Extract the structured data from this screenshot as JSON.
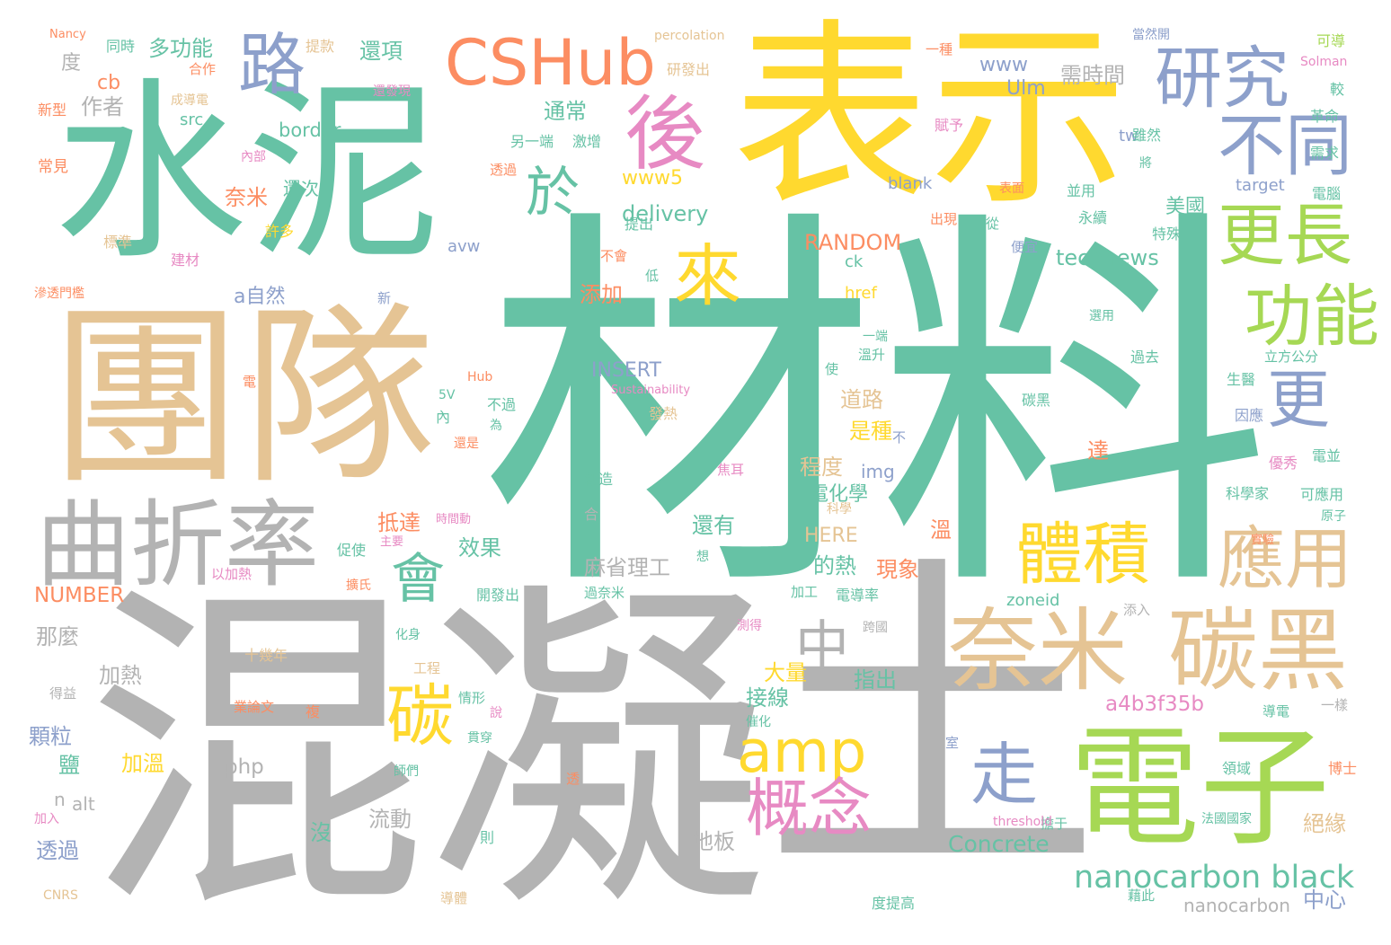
{
  "palette": {
    "teal": "#66c2a5",
    "orange": "#fc8d62",
    "blue": "#8da0cb",
    "pink": "#e78ac3",
    "lime": "#a6d854",
    "yellow": "#ffd92f",
    "tan": "#e5c494",
    "gray": "#b3b3b3"
  },
  "words": [
    {
      "text": "材料",
      "color": "teal"
    },
    {
      "text": "混凝",
      "color": "gray"
    },
    {
      "text": "表示",
      "color": "yellow"
    },
    {
      "text": "水泥",
      "color": "teal"
    },
    {
      "text": "團隊",
      "color": "tan"
    },
    {
      "text": "土",
      "color": "gray"
    },
    {
      "text": "電子",
      "color": "lime"
    },
    {
      "text": "曲折率",
      "color": "gray"
    },
    {
      "text": "CSHub",
      "color": "orange"
    },
    {
      "text": "研究",
      "color": "blue"
    },
    {
      "text": "不同",
      "color": "blue"
    },
    {
      "text": "奈米",
      "color": "tan"
    },
    {
      "text": "碳黑",
      "color": "tan"
    },
    {
      "text": "更長",
      "color": "lime"
    },
    {
      "text": "功能",
      "color": "lime"
    },
    {
      "text": "應用",
      "color": "tan"
    },
    {
      "text": "體積",
      "color": "yellow"
    },
    {
      "text": "後",
      "color": "pink"
    },
    {
      "text": "路",
      "color": "blue"
    },
    {
      "text": "來",
      "color": "yellow"
    },
    {
      "text": "於",
      "color": "teal"
    },
    {
      "text": "更",
      "color": "blue"
    },
    {
      "text": "amp",
      "color": "yellow"
    },
    {
      "text": "會",
      "color": "teal"
    },
    {
      "text": "碳",
      "color": "yellow"
    },
    {
      "text": "中",
      "color": "gray"
    },
    {
      "text": "概念",
      "color": "pink"
    },
    {
      "text": "走",
      "color": "blue"
    },
    {
      "text": "nanocarbon black",
      "color": "teal"
    },
    {
      "text": "Concrete",
      "color": "teal"
    },
    {
      "text": "a4b3f35b",
      "color": "pink"
    },
    {
      "text": "technews",
      "color": "teal"
    },
    {
      "text": "RANDOM",
      "color": "orange"
    },
    {
      "text": "delivery",
      "color": "teal"
    },
    {
      "text": "www5",
      "color": "yellow"
    },
    {
      "text": "INSERT",
      "color": "blue"
    },
    {
      "text": "多功能",
      "color": "teal"
    },
    {
      "text": "麻省理工",
      "color": "gray"
    },
    {
      "text": "NUMBER",
      "color": "orange"
    },
    {
      "text": "還項",
      "color": "teal"
    },
    {
      "text": "www",
      "color": "blue"
    },
    {
      "text": "Ulm",
      "color": "blue"
    },
    {
      "text": "需時間",
      "color": "gray"
    },
    {
      "text": "作者",
      "color": "gray"
    },
    {
      "text": "cb",
      "color": "orange"
    },
    {
      "text": "度",
      "color": "gray"
    },
    {
      "text": "通常",
      "color": "teal"
    },
    {
      "text": "border",
      "color": "teal"
    },
    {
      "text": "src",
      "color": "teal"
    },
    {
      "text": "奈米",
      "color": "orange"
    },
    {
      "text": "還次",
      "color": "teal"
    },
    {
      "text": "美國",
      "color": "teal"
    },
    {
      "text": "tw",
      "color": "blue"
    },
    {
      "text": "添加",
      "color": "orange"
    },
    {
      "text": "道路",
      "color": "tan"
    },
    {
      "text": "是種",
      "color": "yellow"
    },
    {
      "text": "程度",
      "color": "tan"
    },
    {
      "text": "電化學",
      "color": "teal"
    },
    {
      "text": "抵達",
      "color": "orange"
    },
    {
      "text": "還有",
      "color": "teal"
    },
    {
      "text": "效果",
      "color": "teal"
    },
    {
      "text": "的熱",
      "color": "teal"
    },
    {
      "text": "現象",
      "color": "orange"
    },
    {
      "text": "HERE",
      "color": "tan"
    },
    {
      "text": "a自然",
      "color": "blue"
    },
    {
      "text": "那麼",
      "color": "gray"
    },
    {
      "text": "加熱",
      "color": "gray"
    },
    {
      "text": "大量",
      "color": "yellow"
    },
    {
      "text": "接線",
      "color": "teal"
    },
    {
      "text": "指出",
      "color": "teal"
    },
    {
      "text": "顆粒",
      "color": "blue"
    },
    {
      "text": "鹽",
      "color": "teal"
    },
    {
      "text": "加溫",
      "color": "yellow"
    },
    {
      "text": "php",
      "color": "gray"
    },
    {
      "text": "alt",
      "color": "gray"
    },
    {
      "text": "n",
      "color": "gray"
    },
    {
      "text": "透過",
      "color": "blue"
    },
    {
      "text": "流動",
      "color": "gray"
    },
    {
      "text": "地板",
      "color": "gray"
    },
    {
      "text": "沒",
      "color": "teal"
    },
    {
      "text": "絕緣",
      "color": "tan"
    },
    {
      "text": "中心",
      "color": "blue"
    },
    {
      "text": "nanocarbon",
      "color": "gray"
    },
    {
      "text": "img",
      "color": "blue"
    },
    {
      "text": "達",
      "color": "orange"
    },
    {
      "text": "溫",
      "color": "orange"
    },
    {
      "text": "zoneid",
      "color": "teal"
    },
    {
      "text": "target",
      "color": "blue"
    },
    {
      "text": "blank",
      "color": "blue"
    },
    {
      "text": "href",
      "color": "yellow"
    },
    {
      "text": "ck",
      "color": "teal"
    },
    {
      "text": "avw",
      "color": "blue"
    },
    {
      "text": "percolation",
      "color": "tan"
    },
    {
      "text": "Nancy",
      "color": "orange"
    },
    {
      "text": "同時",
      "color": "teal"
    },
    {
      "text": "提款",
      "color": "tan"
    },
    {
      "text": "研發出",
      "color": "tan"
    },
    {
      "text": "一種",
      "color": "orange"
    },
    {
      "text": "當然開",
      "color": "blue"
    },
    {
      "text": "可導",
      "color": "lime"
    },
    {
      "text": "Solman",
      "color": "pink"
    },
    {
      "text": "較",
      "color": "teal"
    },
    {
      "text": "革命",
      "color": "teal"
    },
    {
      "text": "需求",
      "color": "teal"
    },
    {
      "text": "電腦",
      "color": "teal"
    },
    {
      "text": "合作",
      "color": "orange"
    },
    {
      "text": "成導電",
      "color": "tan"
    },
    {
      "text": "還發現",
      "color": "pink"
    },
    {
      "text": "激增",
      "color": "teal"
    },
    {
      "text": "另一端",
      "color": "teal"
    },
    {
      "text": "賦予",
      "color": "pink"
    },
    {
      "text": "雖然",
      "color": "teal"
    },
    {
      "text": "將",
      "color": "teal"
    },
    {
      "text": "新型",
      "color": "orange"
    },
    {
      "text": "常見",
      "color": "orange"
    },
    {
      "text": "內部",
      "color": "pink"
    },
    {
      "text": "透過",
      "color": "orange"
    },
    {
      "text": "標準",
      "color": "tan"
    },
    {
      "text": "許多",
      "color": "yellow"
    },
    {
      "text": "建材",
      "color": "pink"
    },
    {
      "text": "滲透門檻",
      "color": "orange"
    },
    {
      "text": "表面",
      "color": "orange"
    },
    {
      "text": "並用",
      "color": "teal"
    },
    {
      "text": "永續",
      "color": "teal"
    },
    {
      "text": "特殊",
      "color": "teal"
    },
    {
      "text": "提出",
      "color": "teal"
    },
    {
      "text": "出現",
      "color": "orange"
    },
    {
      "text": "從",
      "color": "teal"
    },
    {
      "text": "便宜",
      "color": "blue"
    },
    {
      "text": "不會",
      "color": "orange"
    },
    {
      "text": "低",
      "color": "teal"
    },
    {
      "text": "新",
      "color": "blue"
    },
    {
      "text": "選用",
      "color": "teal"
    },
    {
      "text": "一端",
      "color": "teal"
    },
    {
      "text": "溫升",
      "color": "teal"
    },
    {
      "text": "使",
      "color": "teal"
    },
    {
      "text": "過去",
      "color": "teal"
    },
    {
      "text": "立方公分",
      "color": "teal"
    },
    {
      "text": "生醫",
      "color": "teal"
    },
    {
      "text": "因應",
      "color": "blue"
    },
    {
      "text": "碳黑",
      "color": "teal"
    },
    {
      "text": "優秀",
      "color": "pink"
    },
    {
      "text": "電並",
      "color": "teal"
    },
    {
      "text": "科學家",
      "color": "teal"
    },
    {
      "text": "可應用",
      "color": "teal"
    },
    {
      "text": "原子",
      "color": "teal"
    },
    {
      "text": "實驗",
      "color": "orange"
    },
    {
      "text": "Hub",
      "color": "orange"
    },
    {
      "text": "Sustainability",
      "color": "pink"
    },
    {
      "text": "5V",
      "color": "teal"
    },
    {
      "text": "不過",
      "color": "teal"
    },
    {
      "text": "內",
      "color": "teal"
    },
    {
      "text": "為",
      "color": "teal"
    },
    {
      "text": "還是",
      "color": "orange"
    },
    {
      "text": "發熱",
      "color": "tan"
    },
    {
      "text": "不",
      "color": "blue"
    },
    {
      "text": "電",
      "color": "orange"
    },
    {
      "text": "焦耳",
      "color": "pink"
    },
    {
      "text": "創造",
      "color": "teal"
    },
    {
      "text": "合",
      "color": "gray"
    },
    {
      "text": "科學",
      "color": "tan"
    },
    {
      "text": "時間動",
      "color": "pink"
    },
    {
      "text": "主要",
      "color": "pink"
    },
    {
      "text": "促使",
      "color": "teal"
    },
    {
      "text": "以加熱",
      "color": "pink"
    },
    {
      "text": "想",
      "color": "teal"
    },
    {
      "text": "過奈米",
      "color": "teal"
    },
    {
      "text": "加工",
      "color": "teal"
    },
    {
      "text": "電導率",
      "color": "teal"
    },
    {
      "text": "開發出",
      "color": "teal"
    },
    {
      "text": "擴氏",
      "color": "orange"
    },
    {
      "text": "測得",
      "color": "pink"
    },
    {
      "text": "跨國",
      "color": "gray"
    },
    {
      "text": "添入",
      "color": "gray"
    },
    {
      "text": "化身",
      "color": "teal"
    },
    {
      "text": "十幾年",
      "color": "tan"
    },
    {
      "text": "工程",
      "color": "tan"
    },
    {
      "text": "得益",
      "color": "gray"
    },
    {
      "text": "情形",
      "color": "teal"
    },
    {
      "text": "業論文",
      "color": "orange"
    },
    {
      "text": "複",
      "color": "orange"
    },
    {
      "text": "說",
      "color": "pink"
    },
    {
      "text": "催化",
      "color": "teal"
    },
    {
      "text": "導電",
      "color": "teal"
    },
    {
      "text": "一樣",
      "color": "gray"
    },
    {
      "text": "博士",
      "color": "orange"
    },
    {
      "text": "室",
      "color": "blue"
    },
    {
      "text": "領域",
      "color": "teal"
    },
    {
      "text": "貫穿",
      "color": "teal"
    },
    {
      "text": "師們",
      "color": "teal"
    },
    {
      "text": "透",
      "color": "orange"
    },
    {
      "text": "擔于",
      "color": "teal"
    },
    {
      "text": "threshold",
      "color": "pink"
    },
    {
      "text": "法國國家",
      "color": "teal"
    },
    {
      "text": "則",
      "color": "teal"
    },
    {
      "text": "加入",
      "color": "pink"
    },
    {
      "text": "CNRS",
      "color": "tan"
    },
    {
      "text": "導體",
      "color": "tan"
    },
    {
      "text": "度提高",
      "color": "teal"
    },
    {
      "text": "藉此",
      "color": "teal"
    }
  ]
}
